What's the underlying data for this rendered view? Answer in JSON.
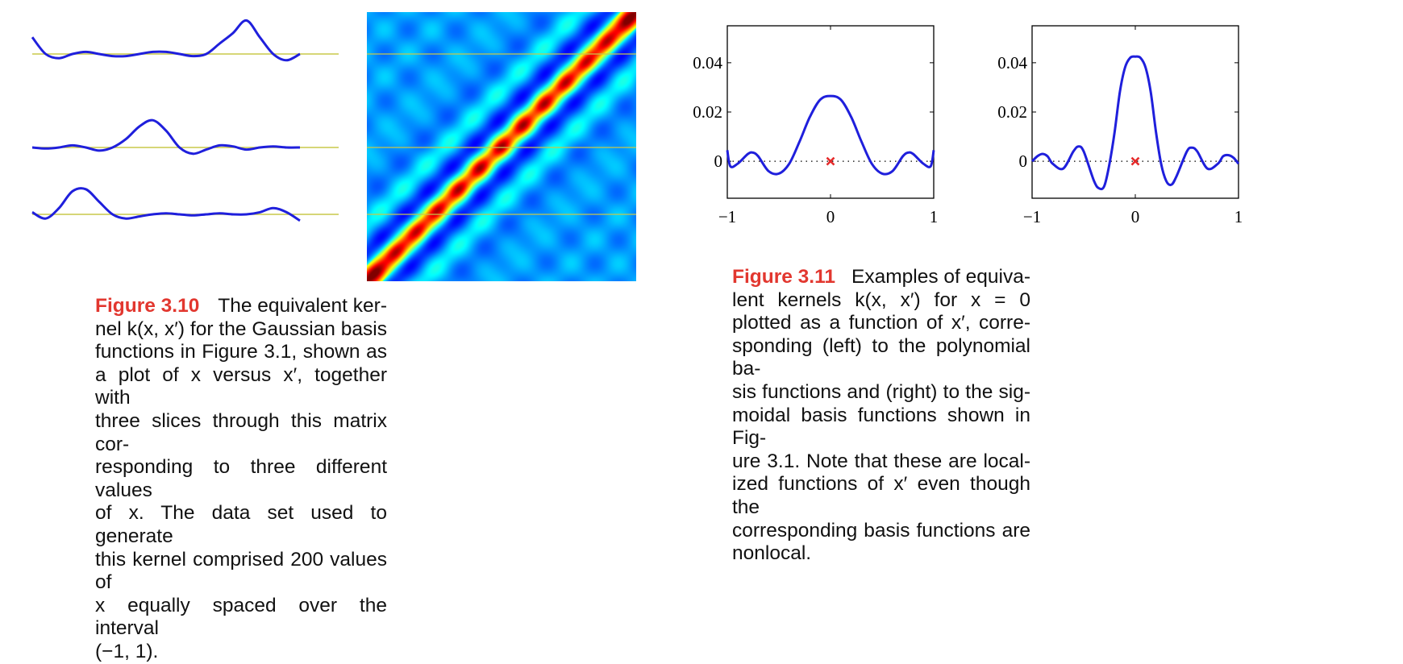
{
  "colors": {
    "curve": "#1f1fdc",
    "slice_baseline": "#c8c84a",
    "marker": "#e52a2a",
    "caption_label": "#e2372f"
  },
  "chart_data": [
    {
      "type": "line",
      "panel": "figure-3.10-kernel-slices",
      "series": [
        {
          "x": [
            -1,
            -0.9,
            -0.8,
            -0.7,
            -0.6,
            -0.5,
            -0.4,
            -0.3,
            -0.2,
            -0.1,
            0,
            0.1,
            0.2,
            0.3,
            0.4,
            0.5,
            0.6,
            0.7,
            0.8,
            0.9,
            1
          ],
          "y": [
            0.8,
            0.0,
            -0.2,
            0.0,
            0.1,
            0.0,
            -0.1,
            -0.1,
            0.0,
            0.1,
            0.1,
            0.0,
            -0.1,
            0.0,
            0.5,
            1.0,
            1.6,
            0.8,
            0.0,
            -0.3,
            0.0
          ]
        },
        {
          "x": [
            -1,
            -0.9,
            -0.8,
            -0.7,
            -0.6,
            -0.5,
            -0.4,
            -0.3,
            -0.2,
            -0.1,
            0,
            0.1,
            0.2,
            0.3,
            0.4,
            0.5,
            0.6,
            0.7,
            0.8,
            0.9,
            1
          ],
          "y": [
            0.0,
            -0.05,
            0.0,
            0.1,
            0.0,
            -0.15,
            0.0,
            0.4,
            1.0,
            1.3,
            0.8,
            0.0,
            -0.3,
            -0.1,
            0.1,
            0.05,
            -0.1,
            0.0,
            0.05,
            0.0,
            0.0
          ]
        },
        {
          "x": [
            -1,
            -0.9,
            -0.8,
            -0.7,
            -0.6,
            -0.5,
            -0.4,
            -0.3,
            -0.2,
            -0.1,
            0,
            0.1,
            0.2,
            0.3,
            0.4,
            0.5,
            0.6,
            0.7,
            0.8,
            0.9,
            1
          ],
          "y": [
            0.1,
            -0.2,
            0.3,
            1.1,
            1.2,
            0.6,
            0.0,
            -0.2,
            -0.1,
            0.0,
            0.05,
            0.0,
            -0.05,
            0.0,
            0.05,
            0.0,
            0.0,
            0.1,
            0.3,
            0.1,
            -0.3
          ]
        }
      ]
    },
    {
      "type": "heatmap",
      "panel": "figure-3.10-kernel-matrix",
      "xlim": [
        -1,
        1
      ],
      "ylim": [
        -1,
        1
      ],
      "colormap": "jet"
    },
    {
      "type": "line",
      "panel": "figure-3.11-left",
      "xlim": [
        -1,
        1
      ],
      "ylim": [
        -0.015,
        0.055
      ],
      "xticks": [
        "−1",
        "0",
        "1"
      ],
      "yticks": [
        "0",
        "0.02",
        "0.04"
      ],
      "marker": {
        "x": 0,
        "y": 0
      },
      "series": [
        {
          "x": [
            -1,
            -0.97,
            -0.9,
            -0.8,
            -0.75,
            -0.7,
            -0.6,
            -0.5,
            -0.4,
            -0.3,
            -0.2,
            -0.1,
            0,
            0.1,
            0.2,
            0.3,
            0.4,
            0.5,
            0.6,
            0.7,
            0.75,
            0.8,
            0.9,
            0.97,
            1
          ],
          "y": [
            0.0045,
            -0.002,
            -0.001,
            0.003,
            0.0035,
            0.002,
            -0.004,
            -0.005,
            -0.001,
            0.008,
            0.018,
            0.025,
            0.0265,
            0.025,
            0.018,
            0.008,
            -0.001,
            -0.005,
            -0.004,
            0.002,
            0.0035,
            0.003,
            -0.001,
            -0.002,
            0.0045
          ]
        }
      ]
    },
    {
      "type": "line",
      "panel": "figure-3.11-right",
      "xlim": [
        -1,
        1
      ],
      "ylim": [
        -0.015,
        0.055
      ],
      "xticks": [
        "−1",
        "0",
        "1"
      ],
      "yticks": [
        "0",
        "0.02",
        "0.04"
      ],
      "marker": {
        "x": 0,
        "y": 0
      },
      "series": [
        {
          "x": [
            -1,
            -0.95,
            -0.9,
            -0.85,
            -0.8,
            -0.7,
            -0.6,
            -0.55,
            -0.5,
            -0.4,
            -0.35,
            -0.3,
            -0.25,
            -0.2,
            -0.15,
            -0.1,
            -0.05,
            0,
            0.05,
            0.1,
            0.15,
            0.2,
            0.25,
            0.3,
            0.35,
            0.4,
            0.5,
            0.55,
            0.6,
            0.7,
            0.8,
            0.85,
            0.9,
            0.95,
            1
          ],
          "y": [
            0.0,
            0.002,
            0.003,
            0.002,
            -0.001,
            -0.003,
            0.004,
            0.006,
            0.004,
            -0.008,
            -0.011,
            -0.01,
            -0.001,
            0.012,
            0.028,
            0.038,
            0.042,
            0.0425,
            0.042,
            0.038,
            0.028,
            0.012,
            -0.001,
            -0.008,
            -0.0095,
            -0.006,
            0.004,
            0.0055,
            0.004,
            -0.003,
            -0.001,
            0.002,
            0.0025,
            0.0015,
            -0.001
          ]
        }
      ]
    }
  ],
  "caption_3_10": {
    "label": "Figure 3.10",
    "lines": [
      "The equivalent ker-",
      "nel k(x, x′) for the Gaussian basis",
      "functions in Figure 3.1, shown as",
      "a plot of x versus x′, together with",
      "three slices through this matrix cor-",
      "responding to three different values",
      "of x. The data set used to generate",
      "this kernel comprised 200 values of",
      "x equally spaced over the interval",
      "(−1, 1)."
    ]
  },
  "caption_3_11": {
    "label": "Figure 3.11",
    "lines": [
      "Examples of equiva-",
      "lent kernels k(x, x′) for x = 0",
      "plotted as a function of x′, corre-",
      "sponding (left) to the polynomial ba-",
      "sis functions and (right) to the sig-",
      "moidal basis functions shown in Fig-",
      "ure 3.1. Note that these are local-",
      "ized functions of x′ even though the",
      "corresponding basis functions are",
      "nonlocal."
    ]
  }
}
